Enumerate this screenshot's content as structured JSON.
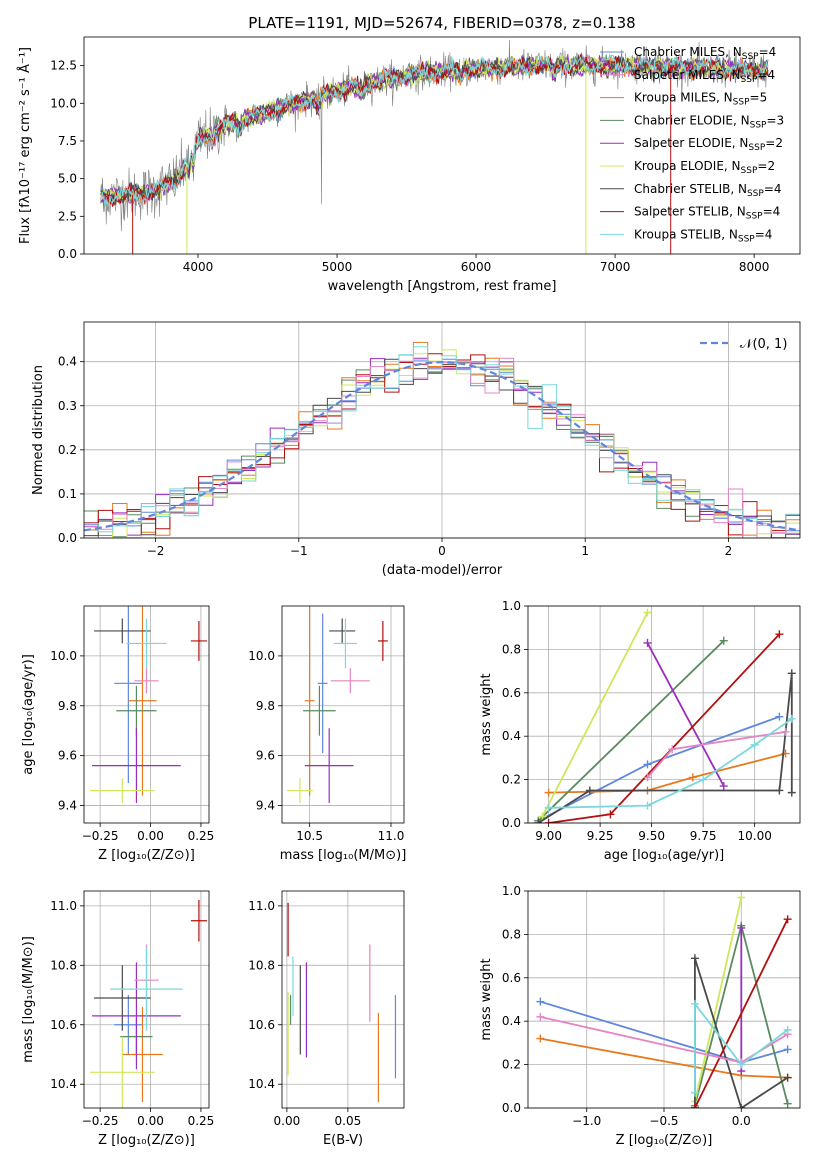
{
  "colors": [
    "#5f87dd",
    "#e8791c",
    "#5a8a60",
    "#9a2dbb",
    "#cde85a",
    "#4a4a4a",
    "#b01010",
    "#e485c4",
    "#7ad8dc"
  ],
  "chart_data": [
    {
      "id": "spectrum",
      "type": "line",
      "title": "PLATE=1191, MJD=52674, FIBERID=0378, z=0.138",
      "xlabel": "wavelength [Angstrom, rest frame]",
      "ylabel": "Flux [fλ10⁻¹⁷ erg cm⁻² s⁻¹ Å⁻¹]",
      "xlim": [
        3180,
        8330
      ],
      "ylim": [
        0,
        14.4
      ],
      "xticks": [
        4000,
        5000,
        6000,
        7000,
        8000
      ],
      "xtick_labels": [
        "4000",
        "5000",
        "6000",
        "7000",
        "8000"
      ],
      "yticks": [
        0,
        2.5,
        5,
        7.5,
        10,
        12.5
      ],
      "ytick_labels": [
        "0.0",
        "2.5",
        "5.0",
        "7.5",
        "10.0",
        "12.5"
      ],
      "grid": false,
      "legend_position": "top-right",
      "data_trend": {
        "x": [
          3300,
          3500,
          3700,
          3850,
          3950,
          4000,
          4200,
          4500,
          4800,
          5000,
          5300,
          5600,
          5900,
          6200,
          6500,
          6800,
          7100,
          7400,
          7700,
          8000,
          8100
        ],
        "y": [
          3.8,
          3.9,
          4.2,
          5.0,
          6.5,
          7.5,
          8.6,
          9.4,
          10.3,
          10.8,
          11.5,
          12.0,
          12.2,
          12.4,
          12.5,
          12.5,
          12.5,
          12.4,
          12.3,
          12.2,
          12.2
        ]
      },
      "series": [
        {
          "name": "Chabrier MILES, N<sub>SSP</sub>=4",
          "color_index": 0
        },
        {
          "name": "Salpeter MILES, N<sub>SSP</sub>=4",
          "color_index": 7
        },
        {
          "name": "Kroupa MILES, N<sub>SSP</sub>=5",
          "color_index": 1
        },
        {
          "name": "Chabrier ELODIE, N<sub>SSP</sub>=3",
          "color_index": 2
        },
        {
          "name": "Salpeter ELODIE, N<sub>SSP</sub>=2",
          "color_index": 3
        },
        {
          "name": "Kroupa ELODIE, N<sub>SSP</sub>=2",
          "color_index": 4
        },
        {
          "name": "Chabrier STELIB, N<sub>SSP</sub>=4",
          "color_index": 5
        },
        {
          "name": "Salpeter STELIB, N<sub>SSP</sub>=4",
          "color_index": 6
        },
        {
          "name": "Kroupa STELIB, N<sub>SSP</sub>=4",
          "color_index": 8
        }
      ]
    },
    {
      "id": "residuals",
      "type": "histogram",
      "xlabel": "(data-model)/error",
      "ylabel": "Normed distribution",
      "xlim": [
        -2.5,
        2.5
      ],
      "ylim": [
        0,
        0.49
      ],
      "xticks": [
        -2,
        -1,
        0,
        1,
        2
      ],
      "xtick_labels": [
        "−2",
        "−1",
        "0",
        "1",
        "2"
      ],
      "yticks": [
        0,
        0.1,
        0.2,
        0.3,
        0.4
      ],
      "ytick_labels": [
        "0.0",
        "0.1",
        "0.2",
        "0.3",
        "0.4"
      ],
      "grid": true,
      "legend_position": "top-right",
      "legend_label": "𝒩(0, 1)",
      "reference_curve": "normal(0,1)",
      "bin_width": 0.1
    },
    {
      "id": "age-vs-z",
      "type": "errorbar",
      "xlabel": "Z [log₁₀(Z/Z⊙)]",
      "ylabel": "age  [log₁₀(age/yr)]",
      "xlim": [
        -0.33,
        0.29
      ],
      "ylim": [
        9.33,
        10.2
      ],
      "xticks": [
        -0.25,
        0,
        0.25
      ],
      "xtick_labels": [
        "−0.25",
        "0.00",
        "0.25"
      ],
      "yticks": [
        9.4,
        9.6,
        9.8,
        10.0
      ],
      "ytick_labels": [
        "9.4",
        "9.6",
        "9.8",
        "10.0"
      ],
      "grid": true,
      "points": [
        {
          "ci": 0,
          "x": -0.11,
          "xerr": 0.07,
          "y": 9.89,
          "yerr": 0.4
        },
        {
          "ci": 1,
          "x": -0.04,
          "xerr": 0.07,
          "y": 9.82,
          "yerr": 0.38
        },
        {
          "ci": 2,
          "x": -0.07,
          "xerr": 0.1,
          "y": 9.78,
          "yerr": 0.1
        },
        {
          "ci": 3,
          "x": -0.07,
          "xerr": 0.22,
          "y": 9.56,
          "yerr": 0.15
        },
        {
          "ci": 4,
          "x": -0.14,
          "xerr": 0.16,
          "y": 9.46,
          "yerr": 0.05
        },
        {
          "ci": 5,
          "x": -0.14,
          "xerr": 0.14,
          "y": 10.1,
          "yerr": 0.05
        },
        {
          "ci": 6,
          "x": 0.24,
          "xerr": 0.04,
          "y": 10.06,
          "yerr": 0.08
        },
        {
          "ci": 7,
          "x": -0.02,
          "xerr": 0.06,
          "y": 9.9,
          "yerr": 0.05
        },
        {
          "ci": 8,
          "x": -0.02,
          "xerr": 0.1,
          "y": 10.05,
          "yerr": 0.1
        }
      ]
    },
    {
      "id": "age-vs-mass",
      "type": "errorbar",
      "xlabel": "mass [log₁₀(M/M⊙)]",
      "ylabel": "",
      "xlim": [
        10.33,
        11.08
      ],
      "ylim": [
        9.33,
        10.2
      ],
      "xticks": [
        10.5,
        11.0
      ],
      "xtick_labels": [
        "10.5",
        "11.0"
      ],
      "yticks": [
        9.4,
        9.6,
        9.8,
        10.0
      ],
      "ytick_labels": [
        "9.4",
        "9.6",
        "9.8",
        "10.0"
      ],
      "grid": true,
      "points": [
        {
          "ci": 0,
          "x": 10.58,
          "xerr": 0.03,
          "y": 9.89,
          "yerr": 0.28
        },
        {
          "ci": 1,
          "x": 10.5,
          "xerr": 0.03,
          "y": 9.82,
          "yerr": 0.38
        },
        {
          "ci": 2,
          "x": 10.56,
          "xerr": 0.1,
          "y": 9.78,
          "yerr": 0.1
        },
        {
          "ci": 3,
          "x": 10.62,
          "xerr": 0.15,
          "y": 9.56,
          "yerr": 0.15
        },
        {
          "ci": 4,
          "x": 10.44,
          "xerr": 0.08,
          "y": 9.46,
          "yerr": 0.05
        },
        {
          "ci": 5,
          "x": 10.7,
          "xerr": 0.08,
          "y": 10.1,
          "yerr": 0.05
        },
        {
          "ci": 6,
          "x": 10.95,
          "xerr": 0.03,
          "y": 10.06,
          "yerr": 0.08
        },
        {
          "ci": 7,
          "x": 10.75,
          "xerr": 0.12,
          "y": 9.9,
          "yerr": 0.05
        },
        {
          "ci": 8,
          "x": 10.72,
          "xerr": 0.07,
          "y": 10.05,
          "yerr": 0.1
        }
      ]
    },
    {
      "id": "weight-vs-age",
      "type": "line",
      "xlabel": "age  [log₁₀(age/yr)]",
      "ylabel": "mass weight",
      "xlim": [
        8.9,
        10.22
      ],
      "ylim": [
        0,
        1
      ],
      "xticks": [
        9.0,
        9.25,
        9.5,
        9.75,
        10.0
      ],
      "xtick_labels": [
        "9.00",
        "9.25",
        "9.50",
        "9.75",
        "10.00"
      ],
      "yticks": [
        0,
        0.2,
        0.4,
        0.6,
        0.8,
        1.0
      ],
      "ytick_labels": [
        "0.0",
        "0.2",
        "0.4",
        "0.6",
        "0.8",
        "1.0"
      ],
      "grid": true,
      "series": [
        {
          "ci": 0,
          "x": [
            8.95,
            9.48,
            10.12
          ],
          "y": [
            0.01,
            0.27,
            0.49
          ]
        },
        {
          "ci": 1,
          "x": [
            9.0,
            9.48,
            9.7,
            10.15
          ],
          "y": [
            0.14,
            0.15,
            0.21,
            0.32
          ]
        },
        {
          "ci": 2,
          "x": [
            8.95,
            9.85
          ],
          "y": [
            0.01,
            0.84
          ]
        },
        {
          "ci": 3,
          "x": [
            9.48,
            9.85
          ],
          "y": [
            0.83,
            0.17
          ]
        },
        {
          "ci": 4,
          "x": [
            8.97,
            9.48
          ],
          "y": [
            0.03,
            0.97
          ]
        },
        {
          "ci": 5,
          "x": [
            8.95,
            9.2,
            10.12,
            10.18,
            10.18
          ],
          "y": [
            0.0,
            0.15,
            0.15,
            0.69,
            0.14
          ]
        },
        {
          "ci": 6,
          "x": [
            9.0,
            9.3,
            10.12
          ],
          "y": [
            0.0,
            0.04,
            0.87
          ]
        },
        {
          "ci": 7,
          "x": [
            9.48,
            9.6,
            10.15
          ],
          "y": [
            0.21,
            0.34,
            0.42
          ]
        },
        {
          "ci": 8,
          "x": [
            9.0,
            9.48,
            9.75,
            10.0,
            10.18
          ],
          "y": [
            0.07,
            0.08,
            0.2,
            0.36,
            0.48
          ]
        }
      ]
    },
    {
      "id": "mass-vs-z",
      "type": "errorbar",
      "xlabel": "Z [log₁₀(Z/Z⊙)]",
      "ylabel": "mass [log₁₀(M/M⊙)]",
      "xlim": [
        -0.33,
        0.29
      ],
      "ylim": [
        10.32,
        11.05
      ],
      "xticks": [
        -0.25,
        0,
        0.25
      ],
      "xtick_labels": [
        "−0.25",
        "0.00",
        "0.25"
      ],
      "yticks": [
        10.4,
        10.6,
        10.8,
        11.0
      ],
      "ytick_labels": [
        "10.4",
        "10.6",
        "10.8",
        "11.0"
      ],
      "grid": true,
      "points": [
        {
          "ci": 0,
          "x": -0.11,
          "xerr": 0.07,
          "y": 10.6,
          "yerr": 0.1
        },
        {
          "ci": 1,
          "x": -0.04,
          "xerr": 0.1,
          "y": 10.5,
          "yerr": 0.16
        },
        {
          "ci": 2,
          "x": -0.07,
          "xerr": 0.08,
          "y": 10.56,
          "yerr": 0.06
        },
        {
          "ci": 3,
          "x": -0.07,
          "xerr": 0.22,
          "y": 10.63,
          "yerr": 0.18
        },
        {
          "ci": 4,
          "x": -0.14,
          "xerr": 0.16,
          "y": 10.44,
          "yerr": 0.12
        },
        {
          "ci": 5,
          "x": -0.14,
          "xerr": 0.14,
          "y": 10.69,
          "yerr": 0.11
        },
        {
          "ci": 6,
          "x": 0.24,
          "xerr": 0.04,
          "y": 10.95,
          "yerr": 0.07
        },
        {
          "ci": 7,
          "x": -0.02,
          "xerr": 0.06,
          "y": 10.75,
          "yerr": 0.12
        },
        {
          "ci": 8,
          "x": -0.02,
          "xerr": 0.18,
          "y": 10.72,
          "yerr": 0.14
        }
      ]
    },
    {
      "id": "mass-vs-ebv",
      "type": "errorbar",
      "xlabel": "E(B-V)",
      "ylabel": "",
      "xlim": [
        -0.004,
        0.096
      ],
      "ylim": [
        10.32,
        11.05
      ],
      "xticks": [
        0.0,
        0.05
      ],
      "xtick_labels": [
        "0.00",
        "0.05"
      ],
      "yticks": [
        10.4,
        10.6,
        10.8,
        11.0
      ],
      "ytick_labels": [
        "10.4",
        "10.6",
        "10.8",
        "11.0"
      ],
      "grid": true,
      "points": [
        {
          "ci": 0,
          "x": 0.089,
          "xerr": 0,
          "y": 10.56,
          "yerr": 0.14
        },
        {
          "ci": 1,
          "x": 0.075,
          "xerr": 0,
          "y": 10.49,
          "yerr": 0.15
        },
        {
          "ci": 2,
          "x": 0.003,
          "xerr": 0,
          "y": 10.65,
          "yerr": 0.05
        },
        {
          "ci": 3,
          "x": 0.016,
          "xerr": 0,
          "y": 10.65,
          "yerr": 0.16
        },
        {
          "ci": 4,
          "x": 0.001,
          "xerr": 0,
          "y": 10.57,
          "yerr": 0.14
        },
        {
          "ci": 5,
          "x": 0.011,
          "xerr": 0,
          "y": 10.65,
          "yerr": 0.15
        },
        {
          "ci": 6,
          "x": 0.001,
          "xerr": 0,
          "y": 10.92,
          "yerr": 0.09
        },
        {
          "ci": 7,
          "x": 0.068,
          "xerr": 0,
          "y": 10.74,
          "yerr": 0.13
        },
        {
          "ci": 8,
          "x": 0.005,
          "xerr": 0,
          "y": 10.73,
          "yerr": 0.1
        }
      ]
    },
    {
      "id": "weight-vs-z",
      "type": "line",
      "xlabel": "Z [log₁₀(Z/Z⊙)]",
      "ylabel": "mass weight",
      "xlim": [
        -1.38,
        0.38
      ],
      "ylim": [
        0,
        1
      ],
      "xticks": [
        -1.0,
        -0.5,
        0.0
      ],
      "xtick_labels": [
        "−1.0",
        "−0.5",
        "0.0"
      ],
      "yticks": [
        0,
        0.2,
        0.4,
        0.6,
        0.8,
        1.0
      ],
      "ytick_labels": [
        "0.0",
        "0.2",
        "0.4",
        "0.6",
        "0.8",
        "1.0"
      ],
      "grid": true,
      "series": [
        {
          "ci": 0,
          "x": [
            -1.3,
            0.0,
            0.3
          ],
          "y": [
            0.49,
            0.21,
            0.27
          ]
        },
        {
          "ci": 1,
          "x": [
            -1.3,
            0.0,
            0.3
          ],
          "y": [
            0.32,
            0.15,
            0.14
          ]
        },
        {
          "ci": 2,
          "x": [
            -0.3,
            0.0,
            0.3
          ],
          "y": [
            0.01,
            0.84,
            0.02
          ]
        },
        {
          "ci": 3,
          "x": [
            0.0,
            0.0
          ],
          "y": [
            0.83,
            0.17
          ]
        },
        {
          "ci": 4,
          "x": [
            -0.3,
            0.0
          ],
          "y": [
            0.03,
            0.97
          ]
        },
        {
          "ci": 5,
          "x": [
            -0.3,
            -0.3,
            0.0,
            0.3
          ],
          "y": [
            0.0,
            0.69,
            0.0,
            0.14
          ]
        },
        {
          "ci": 6,
          "x": [
            -0.3,
            0.3
          ],
          "y": [
            0.0,
            0.87
          ]
        },
        {
          "ci": 7,
          "x": [
            -1.3,
            0.0,
            0.3
          ],
          "y": [
            0.42,
            0.21,
            0.34
          ]
        },
        {
          "ci": 8,
          "x": [
            -0.3,
            -0.3,
            0.0,
            0.3
          ],
          "y": [
            0.07,
            0.48,
            0.2,
            0.36
          ]
        }
      ]
    }
  ]
}
